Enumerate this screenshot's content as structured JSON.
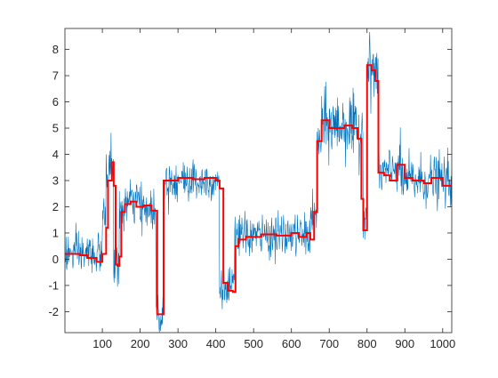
{
  "chart_data": {
    "type": "line",
    "title": "",
    "xlabel": "",
    "ylabel": "",
    "xlim": [
      1,
      1024
    ],
    "ylim": [
      -2.8,
      8.8
    ],
    "grid": false,
    "legend": "none",
    "box": true,
    "xticks": [
      100,
      200,
      300,
      400,
      500,
      600,
      700,
      800,
      900,
      1000
    ],
    "xtick_labels": [
      "100",
      "200",
      "300",
      "400",
      "500",
      "600",
      "700",
      "800",
      "900",
      "1000"
    ],
    "yticks": [
      -2,
      -1,
      0,
      1,
      2,
      3,
      4,
      5,
      6,
      7,
      8
    ],
    "ytick_labels": [
      "-2",
      "-1",
      "0",
      "1",
      "2",
      "3",
      "4",
      "5",
      "6",
      "7",
      "8"
    ],
    "series": [
      {
        "type": "noisy_signal",
        "color": "#0072BD",
        "approx_noise_std": 0.4,
        "segments": [
          {
            "x_start": 1,
            "x_end": 100,
            "level": 0.2
          },
          {
            "x_start": 100,
            "x_end": 110,
            "level": 1.5
          },
          {
            "x_start": 110,
            "x_end": 120,
            "level": 3.3
          },
          {
            "x_start": 120,
            "x_end": 130,
            "level": 3.7
          },
          {
            "x_start": 130,
            "x_end": 145,
            "level": -0.2
          },
          {
            "x_start": 145,
            "x_end": 160,
            "level": 1.8
          },
          {
            "x_start": 160,
            "x_end": 200,
            "level": 2.2
          },
          {
            "x_start": 200,
            "x_end": 242,
            "level": 1.9
          },
          {
            "x_start": 242,
            "x_end": 262,
            "level": -2.1
          },
          {
            "x_start": 262,
            "x_end": 410,
            "level": 3.0
          },
          {
            "x_start": 410,
            "x_end": 450,
            "level": -1.1
          },
          {
            "x_start": 450,
            "x_end": 650,
            "level": 0.9
          },
          {
            "x_start": 650,
            "x_end": 668,
            "level": 1.6
          },
          {
            "x_start": 668,
            "x_end": 680,
            "level": 4.5
          },
          {
            "x_start": 680,
            "x_end": 760,
            "level": 5.1
          },
          {
            "x_start": 760,
            "x_end": 790,
            "level": 4.8
          },
          {
            "x_start": 790,
            "x_end": 800,
            "level": 1.8
          },
          {
            "x_start": 800,
            "x_end": 830,
            "level": 7.2
          },
          {
            "x_start": 830,
            "x_end": 870,
            "level": 3.3
          },
          {
            "x_start": 870,
            "x_end": 890,
            "level": 3.6
          },
          {
            "x_start": 890,
            "x_end": 1024,
            "level": 3.0
          }
        ]
      },
      {
        "type": "step",
        "color": "#FF0000",
        "x": [
          1,
          40,
          60,
          85,
          100,
          110,
          115,
          125,
          130,
          135,
          140,
          145,
          150,
          160,
          175,
          190,
          210,
          230,
          245,
          262,
          300,
          340,
          370,
          400,
          410,
          420,
          432,
          445,
          452,
          460,
          480,
          520,
          560,
          600,
          620,
          640,
          650,
          660,
          668,
          680,
          700,
          740,
          760,
          775,
          785,
          790,
          800,
          812,
          822,
          830,
          845,
          860,
          880,
          900,
          920,
          950,
          970,
          1000,
          1024
        ],
        "y": [
          0.2,
          0.15,
          0.05,
          -0.1,
          0.2,
          1.2,
          3.0,
          3.7,
          2.8,
          -0.2,
          -0.25,
          0.1,
          1.8,
          2.1,
          2.2,
          2.0,
          2.05,
          1.85,
          -2.1,
          3.0,
          3.1,
          3.05,
          3.1,
          3.0,
          2.7,
          -0.9,
          -1.2,
          -1.25,
          0.5,
          0.75,
          0.85,
          0.95,
          0.9,
          1.0,
          0.85,
          1.0,
          0.75,
          1.8,
          4.5,
          5.3,
          5.0,
          5.1,
          5.0,
          4.6,
          2.3,
          1.1,
          7.4,
          7.2,
          6.8,
          3.3,
          3.2,
          3.0,
          3.6,
          3.1,
          3.0,
          2.9,
          3.1,
          2.8,
          2.7
        ]
      }
    ]
  }
}
